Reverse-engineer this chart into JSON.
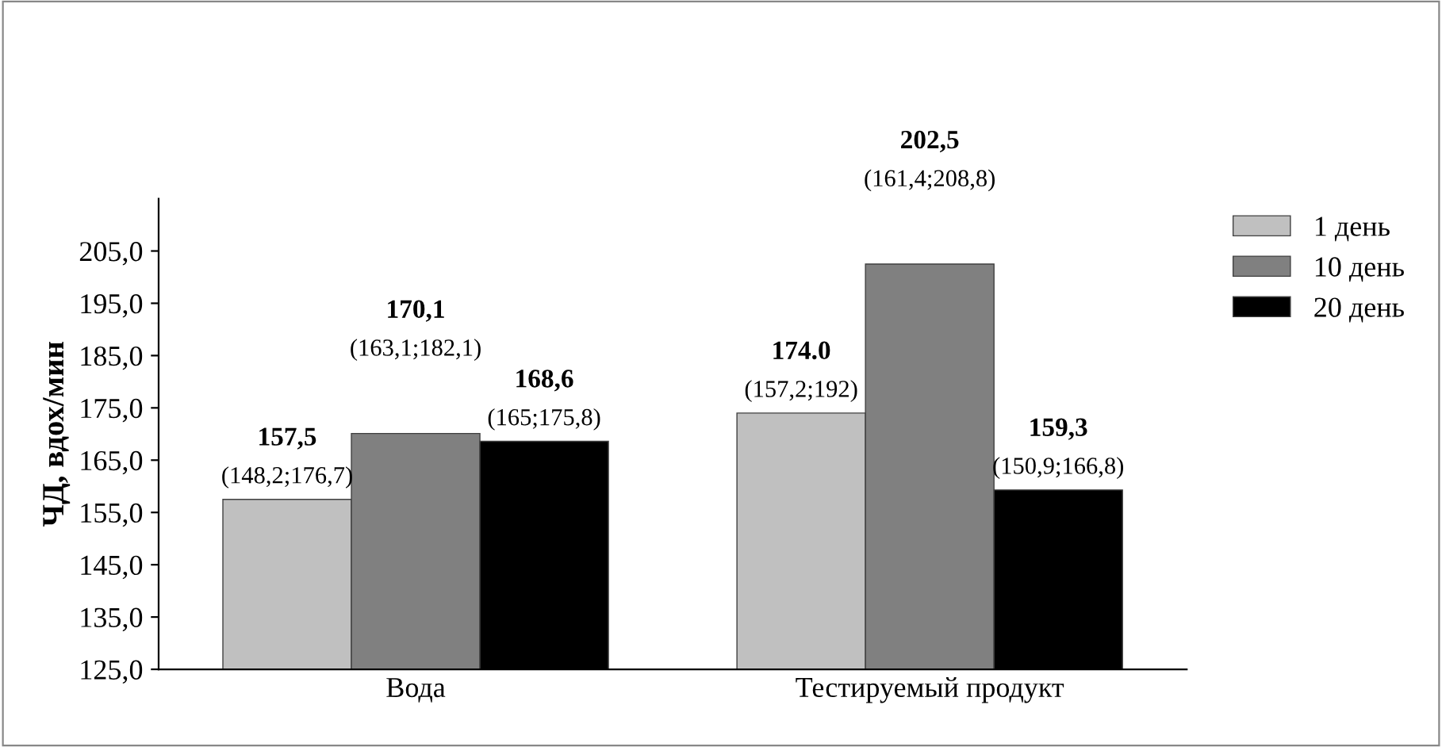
{
  "chart_data": {
    "type": "bar",
    "ylabel": "ЧД, вдох/мин",
    "categories": [
      "Вода",
      "Тестируемый продукт"
    ],
    "series": [
      {
        "name": "1 день",
        "color": "#c0c0c0",
        "values": [
          157.5,
          174.0
        ],
        "value_labels": [
          "157,5\n(148,2;176,7)",
          "174.0\n(157,2;192)"
        ]
      },
      {
        "name": "10 день",
        "color": "#808080",
        "values": [
          170.1,
          202.5
        ],
        "value_labels": [
          "170,1\n(163,1;182,1)",
          "202,5\n(161,4;208,8)"
        ]
      },
      {
        "name": "20 день",
        "color": "#000000",
        "values": [
          168.6,
          159.3
        ],
        "value_labels": [
          "168,6\n(165;175,8)",
          "159,3\n(150,9;166,8)"
        ]
      }
    ],
    "ylim": [
      125,
      215
    ],
    "yticks": [
      {
        "value": 125,
        "label": "125,0"
      },
      {
        "value": 135,
        "label": "135,0"
      },
      {
        "value": 145,
        "label": "145,0"
      },
      {
        "value": 155,
        "label": "155,0"
      },
      {
        "value": 165,
        "label": "165,0"
      },
      {
        "value": 175,
        "label": "175,0"
      },
      {
        "value": 185,
        "label": "185,0"
      },
      {
        "value": 195,
        "label": "195,0"
      },
      {
        "value": 205,
        "label": "205,0"
      }
    ],
    "grid": false,
    "legend": "right"
  }
}
